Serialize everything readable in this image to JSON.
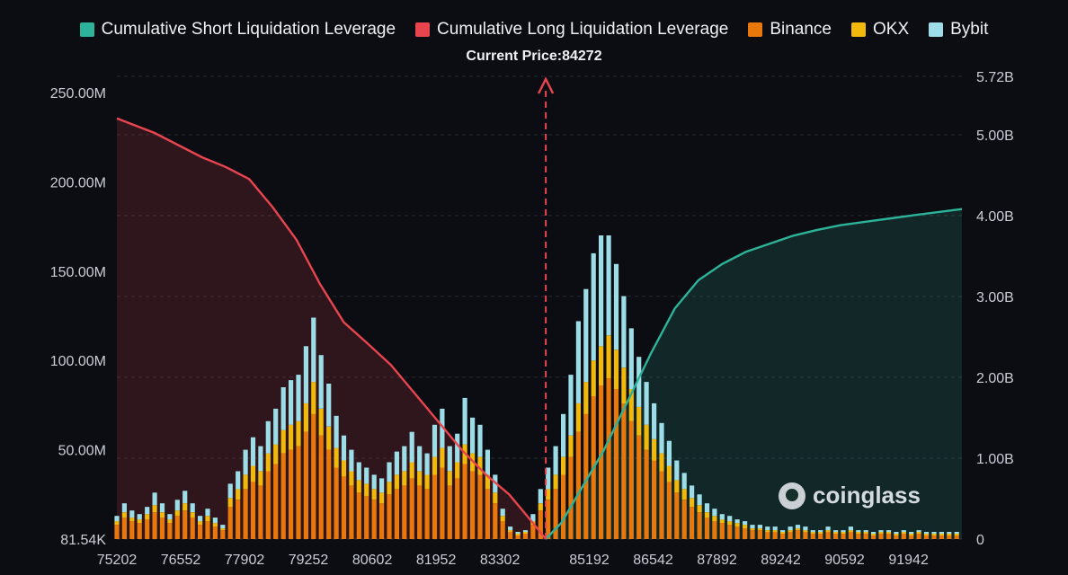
{
  "legend": {
    "short_label": "Cumulative Short Liquidation Leverage",
    "long_label": "Cumulative Long Liquidation Leverage",
    "binance_label": "Binance",
    "okx_label": "OKX",
    "bybit_label": "Bybit"
  },
  "current_price_text": "Current Price:84272",
  "watermark": "coinglass",
  "colors": {
    "short": "#2db39a",
    "long": "#e8454e",
    "binance": "#e8780c",
    "okx": "#f0b90b",
    "bybit": "#9cdde8",
    "background": "#0c0d12"
  },
  "chart_data": {
    "type": "bar",
    "title": "",
    "current_price": 84272,
    "x_tick_labels": [
      "75202",
      "76552",
      "77902",
      "79252",
      "80602",
      "81952",
      "83302",
      "85192",
      "86542",
      "87892",
      "89242",
      "90592",
      "91942"
    ],
    "x_range": [
      75202,
      93072
    ],
    "left_axis": {
      "tick_values": [
        0,
        50000000,
        100000000,
        150000000,
        200000000,
        250000000
      ],
      "tick_labels": [
        "81.54K",
        "50.00M",
        "100.00M",
        "150.00M",
        "200.00M",
        "250.00M"
      ],
      "range": [
        0,
        250000000
      ]
    },
    "right_axis": {
      "tick_values": [
        0,
        1000000000,
        2000000000,
        3000000000,
        4000000000,
        5000000000,
        5720000000
      ],
      "tick_labels": [
        "0",
        "1.00B",
        "2.00B",
        "3.00B",
        "4.00B",
        "5.00B",
        "5.72B"
      ],
      "range": [
        0,
        5720000000
      ]
    },
    "cumulative_long": {
      "name": "Cumulative Long Liquidation Leverage",
      "x": [
        75202,
        76000,
        77000,
        77500,
        78000,
        78500,
        79000,
        79500,
        80000,
        80500,
        81000,
        81500,
        82000,
        82500,
        83000,
        83500,
        84000,
        84272
      ],
      "y": [
        5200000000,
        5020000000,
        4720000000,
        4600000000,
        4450000000,
        4100000000,
        3700000000,
        3150000000,
        2680000000,
        2420000000,
        2150000000,
        1800000000,
        1450000000,
        1100000000,
        800000000,
        550000000,
        200000000,
        0
      ]
    },
    "cumulative_short": {
      "name": "Cumulative Short Liquidation Leverage",
      "x": [
        84272,
        84600,
        85000,
        85500,
        86000,
        86500,
        87000,
        87500,
        88000,
        88500,
        89000,
        89500,
        90000,
        90500,
        91000,
        91500,
        92000,
        93072
      ],
      "y": [
        0,
        200000000,
        600000000,
        1100000000,
        1700000000,
        2300000000,
        2850000000,
        3200000000,
        3400000000,
        3550000000,
        3650000000,
        3750000000,
        3820000000,
        3880000000,
        3920000000,
        3960000000,
        4000000000,
        4080000000
      ]
    },
    "bars": {
      "x": [
        75202,
        75362,
        75522,
        75682,
        75842,
        76002,
        76162,
        76322,
        76482,
        76642,
        76802,
        76962,
        77122,
        77282,
        77442,
        77602,
        77762,
        77922,
        78082,
        78242,
        78402,
        78562,
        78722,
        78882,
        79042,
        79202,
        79362,
        79522,
        79682,
        79842,
        80002,
        80162,
        80322,
        80482,
        80642,
        80802,
        80962,
        81122,
        81282,
        81442,
        81602,
        81762,
        81922,
        82082,
        82242,
        82402,
        82562,
        82722,
        82882,
        83042,
        83202,
        83362,
        83522,
        83682,
        83842,
        84002,
        84162,
        84322,
        84482,
        84642,
        84802,
        84962,
        85122,
        85282,
        85442,
        85602,
        85762,
        85922,
        86082,
        86242,
        86402,
        86562,
        86722,
        86882,
        87042,
        87202,
        87362,
        87522,
        87682,
        87842,
        88002,
        88162,
        88322,
        88482,
        88642,
        88802,
        88962,
        89122,
        89282,
        89442,
        89602,
        89762,
        89922,
        90082,
        90242,
        90402,
        90562,
        90722,
        90882,
        91042,
        91202,
        91362,
        91522,
        91682,
        91842,
        92002,
        92162,
        92322,
        92482,
        92642,
        92802,
        92962
      ],
      "series": [
        {
          "name": "Binance",
          "values": [
            8000000,
            12000000,
            10000000,
            9000000,
            11000000,
            15000000,
            12000000,
            9000000,
            13000000,
            16000000,
            12000000,
            8000000,
            10000000,
            7000000,
            5000000,
            18000000,
            22000000,
            28000000,
            32000000,
            30000000,
            38000000,
            42000000,
            48000000,
            50000000,
            52000000,
            60000000,
            70000000,
            58000000,
            50000000,
            40000000,
            35000000,
            30000000,
            26000000,
            24000000,
            22000000,
            20000000,
            25000000,
            28000000,
            30000000,
            34000000,
            30000000,
            28000000,
            36000000,
            40000000,
            30000000,
            34000000,
            42000000,
            38000000,
            36000000,
            28000000,
            20000000,
            10000000,
            4000000,
            2000000,
            3000000,
            8000000,
            16000000,
            22000000,
            28000000,
            36000000,
            46000000,
            60000000,
            70000000,
            80000000,
            86000000,
            90000000,
            84000000,
            76000000,
            66000000,
            58000000,
            50000000,
            44000000,
            38000000,
            32000000,
            26000000,
            22000000,
            18000000,
            15000000,
            12000000,
            10000000,
            9000000,
            8000000,
            7000000,
            6000000,
            5000000,
            5000000,
            4000000,
            4000000,
            3000000,
            4000000,
            5000000,
            4000000,
            3000000,
            3000000,
            4000000,
            3000000,
            3000000,
            4000000,
            3000000,
            3000000,
            2000000,
            3000000,
            3000000,
            2000000,
            3000000,
            2000000,
            3000000,
            2000000,
            2000000,
            2000000,
            2000000,
            2000000
          ]
        },
        {
          "name": "OKX",
          "values": [
            2000000,
            3000000,
            2000000,
            2000000,
            3000000,
            4000000,
            3000000,
            2000000,
            3000000,
            4000000,
            3000000,
            2000000,
            3000000,
            2000000,
            1000000,
            5000000,
            6000000,
            8000000,
            9000000,
            8000000,
            10000000,
            11000000,
            13000000,
            14000000,
            14000000,
            16000000,
            18000000,
            15000000,
            13000000,
            11000000,
            9000000,
            8000000,
            7000000,
            7000000,
            6000000,
            6000000,
            7000000,
            8000000,
            8000000,
            9000000,
            8000000,
            8000000,
            10000000,
            11000000,
            8000000,
            9000000,
            11000000,
            10000000,
            10000000,
            8000000,
            6000000,
            3000000,
            1000000,
            1000000,
            1000000,
            2000000,
            4000000,
            6000000,
            8000000,
            10000000,
            12000000,
            16000000,
            18000000,
            20000000,
            22000000,
            24000000,
            22000000,
            20000000,
            18000000,
            16000000,
            14000000,
            12000000,
            10000000,
            9000000,
            7000000,
            6000000,
            5000000,
            4000000,
            3000000,
            3000000,
            2000000,
            2000000,
            2000000,
            2000000,
            1000000,
            1000000,
            1000000,
            1000000,
            1000000,
            1000000,
            1000000,
            1000000,
            1000000,
            1000000,
            1000000,
            1000000,
            1000000,
            1000000,
            1000000,
            1000000,
            1000000,
            1000000,
            1000000,
            1000000,
            1000000,
            1000000,
            1000000,
            1000000,
            1000000,
            1000000,
            1000000,
            1000000
          ]
        },
        {
          "name": "Bybit",
          "values": [
            3000000,
            5000000,
            4000000,
            3000000,
            4000000,
            7000000,
            5000000,
            3000000,
            6000000,
            7000000,
            5000000,
            3000000,
            4000000,
            3000000,
            2000000,
            8000000,
            10000000,
            14000000,
            16000000,
            14000000,
            18000000,
            20000000,
            24000000,
            25000000,
            26000000,
            32000000,
            36000000,
            30000000,
            24000000,
            18000000,
            14000000,
            12000000,
            10000000,
            9000000,
            8000000,
            8000000,
            11000000,
            13000000,
            14000000,
            17000000,
            14000000,
            12000000,
            18000000,
            22000000,
            14000000,
            16000000,
            26000000,
            20000000,
            18000000,
            14000000,
            10000000,
            4000000,
            2000000,
            1000000,
            1000000,
            4000000,
            8000000,
            12000000,
            16000000,
            24000000,
            34000000,
            46000000,
            52000000,
            60000000,
            62000000,
            56000000,
            48000000,
            40000000,
            34000000,
            28000000,
            24000000,
            20000000,
            17000000,
            14000000,
            11000000,
            9000000,
            7000000,
            6000000,
            5000000,
            4000000,
            3000000,
            3000000,
            2000000,
            2000000,
            2000000,
            2000000,
            2000000,
            2000000,
            1000000,
            2000000,
            2000000,
            2000000,
            1000000,
            1000000,
            2000000,
            1000000,
            1000000,
            2000000,
            1000000,
            1000000,
            1000000,
            1000000,
            1000000,
            1000000,
            1000000,
            1000000,
            1000000,
            1000000,
            1000000,
            1000000,
            1000000,
            1000000
          ]
        }
      ]
    },
    "grid": true,
    "legend_position": "top"
  }
}
